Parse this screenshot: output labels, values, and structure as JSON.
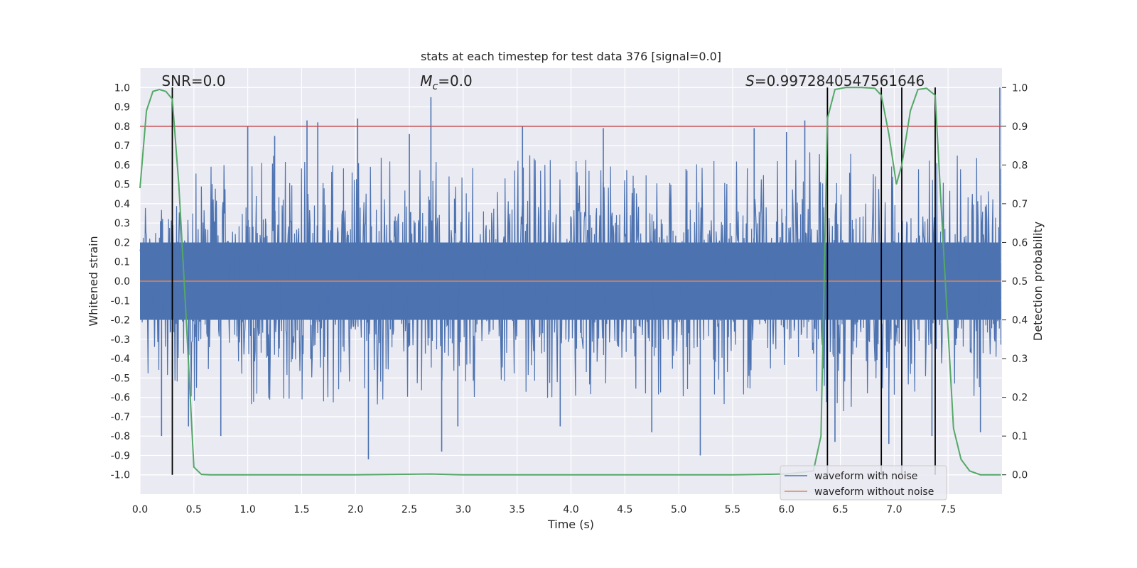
{
  "chart_data": {
    "type": "line",
    "title": "stats at each timestep for test data 376 [signal=0.0]",
    "xlabel": "Time (s)",
    "ylabel_left": "Whitened strain",
    "ylabel_right": "Detection probability",
    "xlim": [
      0.0,
      8.0
    ],
    "ylim_left": [
      -1.1,
      1.1
    ],
    "ylim_right": [
      -0.05,
      1.05
    ],
    "x_ticks": [
      0.0,
      0.5,
      1.0,
      1.5,
      2.0,
      2.5,
      3.0,
      3.5,
      4.0,
      4.5,
      5.0,
      5.5,
      6.0,
      6.5,
      7.0,
      7.5
    ],
    "x_tick_labels": [
      "0.0",
      "0.5",
      "1.0",
      "1.5",
      "2.0",
      "2.5",
      "3.0",
      "3.5",
      "4.0",
      "4.5",
      "5.0",
      "5.5",
      "6.0",
      "6.5",
      "7.0",
      "7.5"
    ],
    "y_left_ticks": [
      1.0,
      0.9,
      0.8,
      0.7,
      0.6,
      0.5,
      0.4,
      0.3,
      0.2,
      0.1,
      0.0,
      -0.1,
      -0.2,
      -0.3,
      -0.4,
      -0.5,
      -0.6,
      -0.7,
      -0.8,
      -0.9,
      -1.0
    ],
    "y_left_tick_labels": [
      "1.0",
      "0.9",
      "0.8",
      "0.7",
      "0.6",
      "0.5",
      "0.4",
      "0.3",
      "0.2",
      "0.1",
      "0.0",
      "-0.1",
      "-0.2",
      "-0.3",
      "-0.4",
      "-0.5",
      "-0.6",
      "-0.7",
      "-0.8",
      "-0.9",
      "-1.0"
    ],
    "y_right_ticks": [
      1.0,
      0.9,
      0.8,
      0.7,
      0.6,
      0.5,
      0.4,
      0.3,
      0.2,
      0.1,
      0.0
    ],
    "y_right_tick_labels": [
      "1.0",
      "0.9",
      "0.8",
      "0.7",
      "0.6",
      "0.5",
      "0.4",
      "0.3",
      "0.2",
      "0.1",
      "0.0"
    ],
    "threshold": {
      "value": 0.9,
      "axis": "right",
      "color": "#c44e52"
    },
    "annotations": {
      "snr": "SNR=0.0",
      "mc_symbol": "M",
      "mc_sub": "c",
      "mc_value": "=0.0",
      "s_symbol": "S",
      "s_value": "=0.9972840547561646"
    },
    "vertical_lines_x": [
      0.3,
      6.38,
      6.88,
      7.07,
      7.38
    ],
    "noise_envelope": {
      "x": [
        0.0,
        0.3,
        0.6,
        1.0,
        1.4,
        2.0,
        2.5,
        3.0,
        3.5,
        4.0,
        4.5,
        5.0,
        5.5,
        6.0,
        6.3,
        6.6,
        7.0,
        7.5,
        7.99
      ],
      "upper": [
        0.35,
        0.45,
        0.55,
        0.6,
        0.6,
        0.6,
        0.6,
        0.55,
        0.6,
        0.6,
        0.55,
        0.55,
        0.6,
        0.6,
        0.65,
        0.6,
        0.55,
        0.6,
        0.65
      ],
      "lower": [
        -0.4,
        -0.55,
        -0.6,
        -0.6,
        -0.55,
        -0.6,
        -0.6,
        -0.55,
        -0.6,
        -0.55,
        -0.55,
        -0.55,
        -0.6,
        -0.6,
        -0.65,
        -0.6,
        -0.55,
        -0.55,
        -0.55
      ],
      "peaks_x": [
        0.2,
        0.45,
        0.75,
        1.0,
        1.25,
        1.55,
        1.65,
        2.02,
        2.12,
        2.5,
        2.7,
        2.8,
        2.95,
        3.55,
        3.9,
        4.3,
        4.75,
        5.2,
        5.7,
        6.0,
        6.17,
        6.45,
        6.95,
        7.35,
        7.8,
        7.98
      ],
      "peaks_y": [
        -0.8,
        -0.75,
        -0.8,
        0.8,
        0.75,
        0.83,
        0.82,
        0.84,
        -0.92,
        0.76,
        0.95,
        -0.88,
        -0.75,
        0.8,
        -0.75,
        0.79,
        -0.78,
        -0.9,
        0.79,
        0.77,
        0.83,
        -0.83,
        -0.84,
        -0.8,
        -0.78,
        1.0
      ]
    },
    "series": [
      {
        "name": "waveform with noise",
        "color": "#4c72b0",
        "axis": "left"
      },
      {
        "name": "waveform without noise",
        "color": "#dd8452",
        "axis": "left",
        "x": [
          0.0,
          7.99
        ],
        "y": [
          0.0,
          0.0
        ]
      },
      {
        "name": "detection probability",
        "color": "#55a868",
        "axis": "right",
        "x": [
          0.0,
          0.06,
          0.12,
          0.18,
          0.24,
          0.3,
          0.36,
          0.42,
          0.5,
          0.57,
          0.65,
          1.0,
          2.0,
          2.7,
          3.0,
          4.0,
          5.0,
          5.5,
          6.0,
          6.25,
          6.32,
          6.38,
          6.45,
          6.55,
          6.7,
          6.82,
          6.88,
          6.95,
          7.02,
          7.07,
          7.15,
          7.22,
          7.3,
          7.38,
          7.45,
          7.55,
          7.62,
          7.7,
          7.8,
          7.99
        ],
        "y": [
          0.74,
          0.94,
          0.99,
          0.995,
          0.99,
          0.97,
          0.75,
          0.45,
          0.02,
          0.001,
          0.0,
          0.0,
          0.0,
          0.002,
          0.0,
          0.0,
          0.0,
          0.0,
          0.002,
          0.01,
          0.1,
          0.92,
          0.995,
          1.0,
          1.0,
          0.998,
          0.98,
          0.88,
          0.75,
          0.8,
          0.94,
          0.995,
          0.998,
          0.98,
          0.62,
          0.12,
          0.04,
          0.01,
          0.0,
          0.0
        ]
      }
    ],
    "legend": [
      "waveform with noise",
      "waveform without noise"
    ],
    "legend_position": "bottom-right"
  }
}
